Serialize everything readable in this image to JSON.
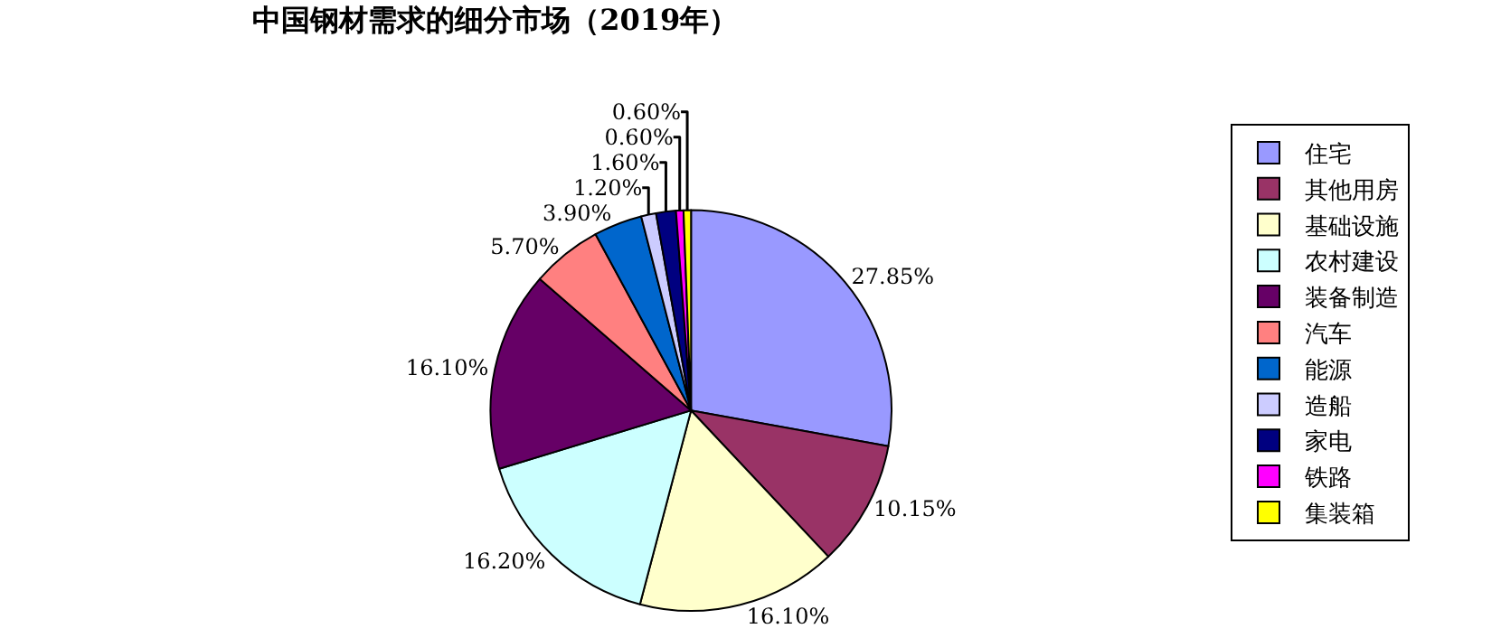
{
  "chart_data": {
    "type": "pie",
    "title": "中国钢材需求的细分市场（2019年）",
    "categories": [
      "住宅",
      "其他用房",
      "基础设施",
      "农村建设",
      "装备制造",
      "汽车",
      "能源",
      "造船",
      "家电",
      "铁路",
      "集装箱"
    ],
    "values": [
      27.85,
      10.15,
      16.1,
      16.2,
      16.1,
      5.7,
      3.9,
      1.2,
      1.6,
      0.6,
      0.6
    ],
    "value_labels": [
      "27.85%",
      "10.15%",
      "16.10%",
      "16.20%",
      "16.10%",
      "5.70%",
      "3.90%",
      "1.20%",
      "1.60%",
      "0.60%",
      "0.60%"
    ],
    "colors": [
      "#9999ff",
      "#993366",
      "#ffffcc",
      "#ccffff",
      "#660066",
      "#ff8080",
      "#0066cc",
      "#ccccff",
      "#000080",
      "#ff00ff",
      "#ffff00"
    ],
    "legend": "right"
  }
}
